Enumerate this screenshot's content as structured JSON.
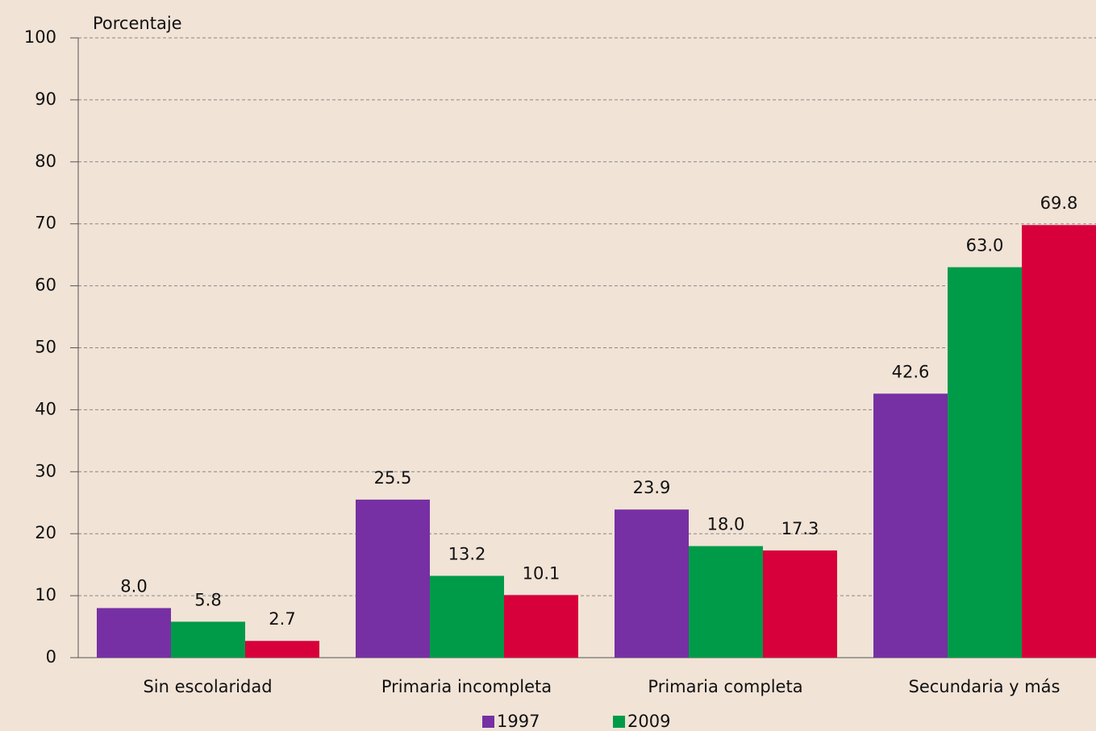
{
  "chart_data": {
    "type": "bar",
    "y_label": "Porcentaje",
    "categories": [
      "Sin escolaridad",
      "Primaria incompleta",
      "Primaria completa",
      "Secundaria y más"
    ],
    "series": [
      {
        "name": "1997",
        "color": "#7630a3",
        "values": [
          8.0,
          25.5,
          23.9,
          42.6
        ],
        "value_labels": [
          "8.0",
          "25.5",
          "23.9",
          "42.6"
        ]
      },
      {
        "name": "2009",
        "color": "#009b48",
        "values": [
          5.8,
          13.2,
          18.0,
          63.0
        ],
        "value_labels": [
          "5.8",
          "13.2",
          "18.0",
          "63.0"
        ]
      },
      {
        "color": "#d7003b",
        "values": [
          2.7,
          10.1,
          17.3,
          69.8
        ],
        "value_labels": [
          "2.7",
          "10.1",
          "17.3",
          "69.8"
        ]
      }
    ],
    "ylim": [
      0,
      100
    ],
    "yticks": [
      0,
      10,
      20,
      30,
      40,
      50,
      60,
      70,
      80,
      90,
      100
    ],
    "grid": true
  }
}
